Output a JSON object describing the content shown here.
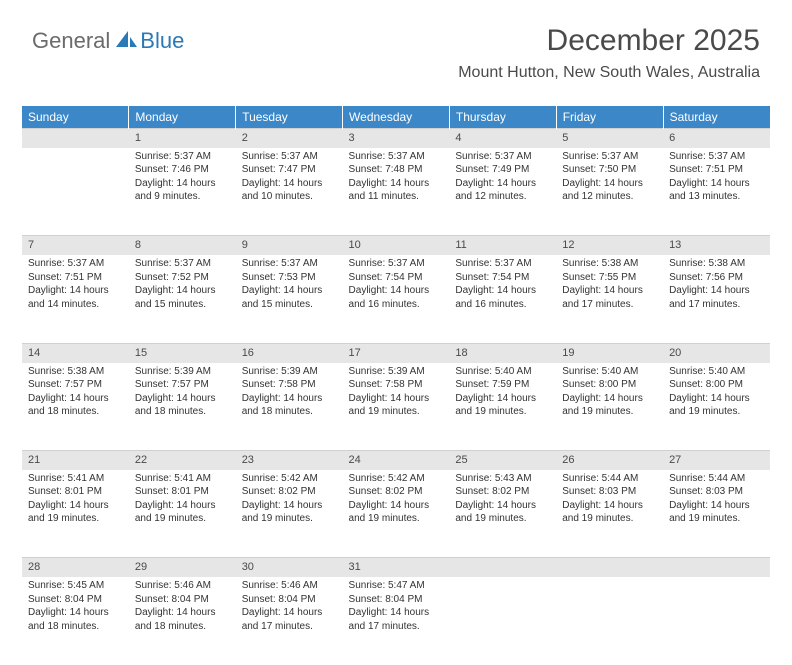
{
  "brand": {
    "part1": "General",
    "part2": "Blue"
  },
  "title": "December 2025",
  "location": "Mount Hutton, New South Wales, Australia",
  "colors": {
    "header_bg": "#3b87c8",
    "header_text": "#ffffff",
    "daynum_bg": "#e6e6e6",
    "text": "#333333",
    "title_color": "#4a4a4a",
    "brand_gray": "#6b6b6b",
    "brand_blue": "#2a7ab8"
  },
  "weekdays": [
    "Sunday",
    "Monday",
    "Tuesday",
    "Wednesday",
    "Thursday",
    "Friday",
    "Saturday"
  ],
  "weeks": [
    [
      null,
      {
        "n": "1",
        "sr": "Sunrise: 5:37 AM",
        "ss": "Sunset: 7:46 PM",
        "d1": "Daylight: 14 hours",
        "d2": "and 9 minutes."
      },
      {
        "n": "2",
        "sr": "Sunrise: 5:37 AM",
        "ss": "Sunset: 7:47 PM",
        "d1": "Daylight: 14 hours",
        "d2": "and 10 minutes."
      },
      {
        "n": "3",
        "sr": "Sunrise: 5:37 AM",
        "ss": "Sunset: 7:48 PM",
        "d1": "Daylight: 14 hours",
        "d2": "and 11 minutes."
      },
      {
        "n": "4",
        "sr": "Sunrise: 5:37 AM",
        "ss": "Sunset: 7:49 PM",
        "d1": "Daylight: 14 hours",
        "d2": "and 12 minutes."
      },
      {
        "n": "5",
        "sr": "Sunrise: 5:37 AM",
        "ss": "Sunset: 7:50 PM",
        "d1": "Daylight: 14 hours",
        "d2": "and 12 minutes."
      },
      {
        "n": "6",
        "sr": "Sunrise: 5:37 AM",
        "ss": "Sunset: 7:51 PM",
        "d1": "Daylight: 14 hours",
        "d2": "and 13 minutes."
      }
    ],
    [
      {
        "n": "7",
        "sr": "Sunrise: 5:37 AM",
        "ss": "Sunset: 7:51 PM",
        "d1": "Daylight: 14 hours",
        "d2": "and 14 minutes."
      },
      {
        "n": "8",
        "sr": "Sunrise: 5:37 AM",
        "ss": "Sunset: 7:52 PM",
        "d1": "Daylight: 14 hours",
        "d2": "and 15 minutes."
      },
      {
        "n": "9",
        "sr": "Sunrise: 5:37 AM",
        "ss": "Sunset: 7:53 PM",
        "d1": "Daylight: 14 hours",
        "d2": "and 15 minutes."
      },
      {
        "n": "10",
        "sr": "Sunrise: 5:37 AM",
        "ss": "Sunset: 7:54 PM",
        "d1": "Daylight: 14 hours",
        "d2": "and 16 minutes."
      },
      {
        "n": "11",
        "sr": "Sunrise: 5:37 AM",
        "ss": "Sunset: 7:54 PM",
        "d1": "Daylight: 14 hours",
        "d2": "and 16 minutes."
      },
      {
        "n": "12",
        "sr": "Sunrise: 5:38 AM",
        "ss": "Sunset: 7:55 PM",
        "d1": "Daylight: 14 hours",
        "d2": "and 17 minutes."
      },
      {
        "n": "13",
        "sr": "Sunrise: 5:38 AM",
        "ss": "Sunset: 7:56 PM",
        "d1": "Daylight: 14 hours",
        "d2": "and 17 minutes."
      }
    ],
    [
      {
        "n": "14",
        "sr": "Sunrise: 5:38 AM",
        "ss": "Sunset: 7:57 PM",
        "d1": "Daylight: 14 hours",
        "d2": "and 18 minutes."
      },
      {
        "n": "15",
        "sr": "Sunrise: 5:39 AM",
        "ss": "Sunset: 7:57 PM",
        "d1": "Daylight: 14 hours",
        "d2": "and 18 minutes."
      },
      {
        "n": "16",
        "sr": "Sunrise: 5:39 AM",
        "ss": "Sunset: 7:58 PM",
        "d1": "Daylight: 14 hours",
        "d2": "and 18 minutes."
      },
      {
        "n": "17",
        "sr": "Sunrise: 5:39 AM",
        "ss": "Sunset: 7:58 PM",
        "d1": "Daylight: 14 hours",
        "d2": "and 19 minutes."
      },
      {
        "n": "18",
        "sr": "Sunrise: 5:40 AM",
        "ss": "Sunset: 7:59 PM",
        "d1": "Daylight: 14 hours",
        "d2": "and 19 minutes."
      },
      {
        "n": "19",
        "sr": "Sunrise: 5:40 AM",
        "ss": "Sunset: 8:00 PM",
        "d1": "Daylight: 14 hours",
        "d2": "and 19 minutes."
      },
      {
        "n": "20",
        "sr": "Sunrise: 5:40 AM",
        "ss": "Sunset: 8:00 PM",
        "d1": "Daylight: 14 hours",
        "d2": "and 19 minutes."
      }
    ],
    [
      {
        "n": "21",
        "sr": "Sunrise: 5:41 AM",
        "ss": "Sunset: 8:01 PM",
        "d1": "Daylight: 14 hours",
        "d2": "and 19 minutes."
      },
      {
        "n": "22",
        "sr": "Sunrise: 5:41 AM",
        "ss": "Sunset: 8:01 PM",
        "d1": "Daylight: 14 hours",
        "d2": "and 19 minutes."
      },
      {
        "n": "23",
        "sr": "Sunrise: 5:42 AM",
        "ss": "Sunset: 8:02 PM",
        "d1": "Daylight: 14 hours",
        "d2": "and 19 minutes."
      },
      {
        "n": "24",
        "sr": "Sunrise: 5:42 AM",
        "ss": "Sunset: 8:02 PM",
        "d1": "Daylight: 14 hours",
        "d2": "and 19 minutes."
      },
      {
        "n": "25",
        "sr": "Sunrise: 5:43 AM",
        "ss": "Sunset: 8:02 PM",
        "d1": "Daylight: 14 hours",
        "d2": "and 19 minutes."
      },
      {
        "n": "26",
        "sr": "Sunrise: 5:44 AM",
        "ss": "Sunset: 8:03 PM",
        "d1": "Daylight: 14 hours",
        "d2": "and 19 minutes."
      },
      {
        "n": "27",
        "sr": "Sunrise: 5:44 AM",
        "ss": "Sunset: 8:03 PM",
        "d1": "Daylight: 14 hours",
        "d2": "and 19 minutes."
      }
    ],
    [
      {
        "n": "28",
        "sr": "Sunrise: 5:45 AM",
        "ss": "Sunset: 8:04 PM",
        "d1": "Daylight: 14 hours",
        "d2": "and 18 minutes."
      },
      {
        "n": "29",
        "sr": "Sunrise: 5:46 AM",
        "ss": "Sunset: 8:04 PM",
        "d1": "Daylight: 14 hours",
        "d2": "and 18 minutes."
      },
      {
        "n": "30",
        "sr": "Sunrise: 5:46 AM",
        "ss": "Sunset: 8:04 PM",
        "d1": "Daylight: 14 hours",
        "d2": "and 17 minutes."
      },
      {
        "n": "31",
        "sr": "Sunrise: 5:47 AM",
        "ss": "Sunset: 8:04 PM",
        "d1": "Daylight: 14 hours",
        "d2": "and 17 minutes."
      },
      null,
      null,
      null
    ]
  ]
}
